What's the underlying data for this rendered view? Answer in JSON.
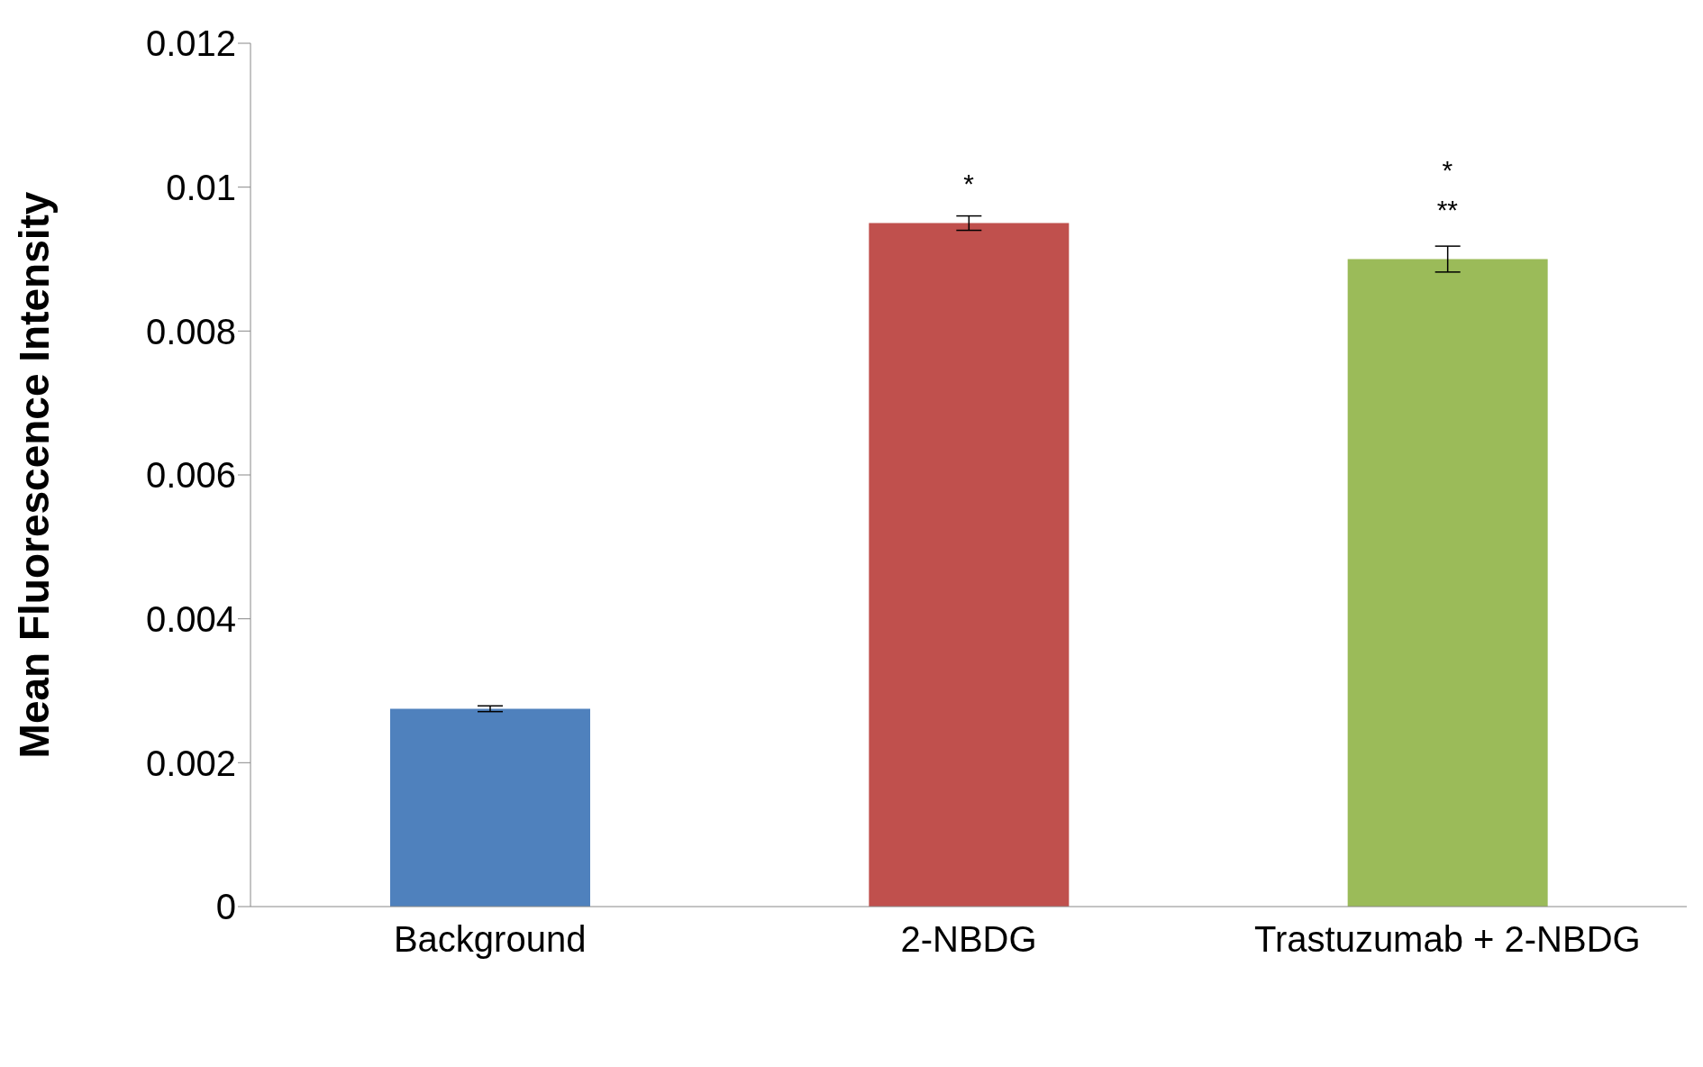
{
  "chart_data": {
    "type": "bar",
    "ylabel": "Mean Fluorescence Intensity",
    "categories": [
      "Background",
      "2-NBDG",
      "Trastuzumab + 2-NBDG"
    ],
    "values": [
      0.00275,
      0.0095,
      0.009
    ],
    "errors": [
      4e-05,
      0.0001,
      0.00018
    ],
    "colors": [
      "#4f81bd",
      "#c0504d",
      "#9bbb59"
    ],
    "ylim": [
      0,
      0.012
    ],
    "yticks": [
      0,
      0.002,
      0.004,
      0.006,
      0.008,
      0.01,
      0.012
    ],
    "grid": false,
    "legend": false,
    "annotations": [
      "*",
      "*",
      "**"
    ]
  }
}
